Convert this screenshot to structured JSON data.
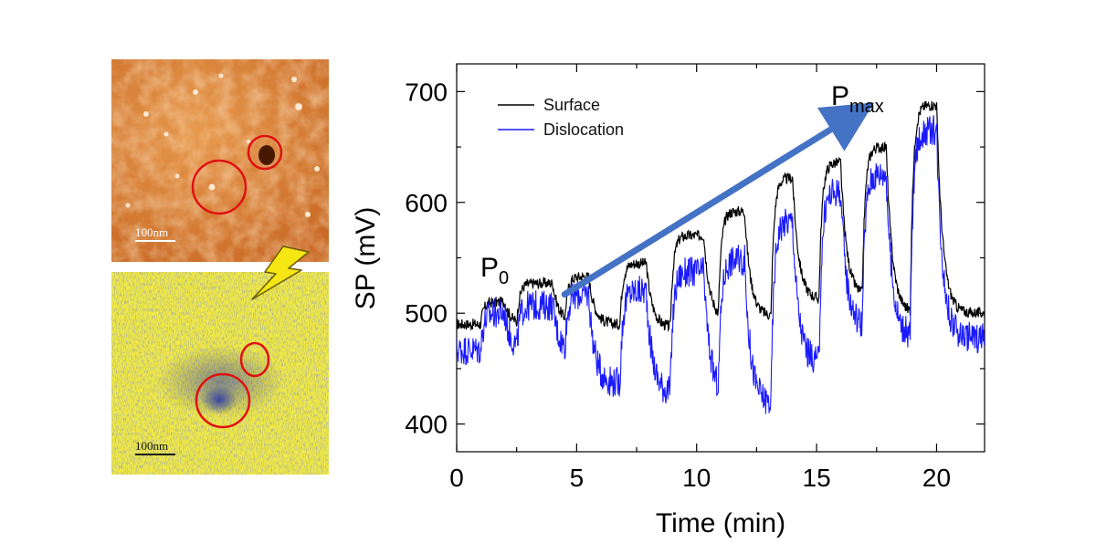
{
  "images": {
    "afm_scale": "100nm",
    "kpfm_scale": "100nm"
  },
  "colors": {
    "surface": "#000000",
    "dislocation": "#1a1aff",
    "arrow": "#4472c4",
    "circle": "#e01010",
    "bolt": "#f5e614"
  },
  "labels": {
    "p0_main": "P",
    "p0_sub": "0",
    "pmax_main": "P",
    "pmax_sub": "max"
  },
  "chart_data": {
    "type": "line",
    "title": "",
    "xlabel": "Time (min)",
    "ylabel": "SP (mV)",
    "xlim": [
      0,
      22
    ],
    "ylim": [
      375,
      725
    ],
    "xticks": [
      0,
      5,
      10,
      15,
      20
    ],
    "yticks": [
      400,
      500,
      600,
      700
    ],
    "legend_position": "top-left",
    "annotation_arrow": {
      "from": [
        4.5,
        517
      ],
      "to": [
        16.5,
        678
      ]
    },
    "series": [
      {
        "name": "Surface",
        "color": "#000000",
        "high_levels": [
          510,
          527,
          533,
          545,
          570,
          592,
          622,
          636,
          650,
          688
        ],
        "low_levels": [
          490,
          492,
          490,
          487,
          494,
          497,
          512,
          515,
          500,
          500
        ]
      },
      {
        "name": "Dislocation",
        "color": "#1a1aff",
        "high_levels": [
          500,
          507,
          517,
          520,
          537,
          548,
          583,
          610,
          626,
          665
        ],
        "low_levels": [
          467,
          465,
          437,
          428,
          425,
          418,
          455,
          488,
          478,
          478
        ]
      }
    ],
    "pulses": [
      [
        1.0,
        2.0
      ],
      [
        2.5,
        4.0
      ],
      [
        4.5,
        5.5
      ],
      [
        6.8,
        7.9
      ],
      [
        8.9,
        10.3
      ],
      [
        10.9,
        12.0
      ],
      [
        13.1,
        14.0
      ],
      [
        15.1,
        16.0
      ],
      [
        16.9,
        17.9
      ],
      [
        18.9,
        20.0
      ]
    ]
  }
}
